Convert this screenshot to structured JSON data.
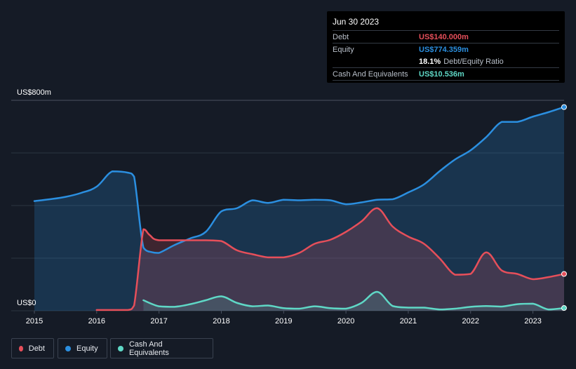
{
  "tooltip": {
    "date": "Jun 30 2023",
    "rows": {
      "debt": {
        "label": "Debt",
        "value": "US$140.000m"
      },
      "equity": {
        "label": "Equity",
        "value": "US$774.359m"
      },
      "ratio": {
        "value": "18.1%",
        "label": "Debt/Equity Ratio"
      },
      "cash": {
        "label": "Cash And Equivalents",
        "value": "US$10.536m"
      }
    }
  },
  "legend": [
    {
      "key": "debt",
      "label": "Debt"
    },
    {
      "key": "equity",
      "label": "Equity"
    },
    {
      "key": "cash",
      "label": "Cash And Equivalents"
    }
  ],
  "colors": {
    "debt": "#e64f5a",
    "equity": "#2b8fe0",
    "cash": "#5fd8c6",
    "grid": "#2c3440",
    "axis_text": "#ffffff"
  },
  "chart_data": {
    "type": "area",
    "title": "",
    "xlabel": "",
    "ylabel": "",
    "ylim": [
      0,
      800
    ],
    "xlim": [
      2015.0,
      2023.5
    ],
    "y_tick_labels": {
      "top": "US$800m",
      "bottom": "US$0"
    },
    "x_ticks": [
      "2015",
      "2016",
      "2017",
      "2018",
      "2019",
      "2020",
      "2021",
      "2022",
      "2023"
    ],
    "series": [
      {
        "name": "Equity",
        "key": "equity",
        "points": [
          [
            2015.0,
            417
          ],
          [
            2015.25,
            424
          ],
          [
            2015.5,
            433
          ],
          [
            2015.75,
            448
          ],
          [
            2016.0,
            472
          ],
          [
            2016.25,
            530
          ],
          [
            2016.5,
            525
          ],
          [
            2016.6,
            510
          ],
          [
            2016.75,
            240
          ],
          [
            2016.9,
            222
          ],
          [
            2017.0,
            220
          ],
          [
            2017.25,
            250
          ],
          [
            2017.5,
            275
          ],
          [
            2017.75,
            300
          ],
          [
            2018.0,
            378
          ],
          [
            2018.25,
            390
          ],
          [
            2018.5,
            420
          ],
          [
            2018.75,
            410
          ],
          [
            2019.0,
            422
          ],
          [
            2019.25,
            420
          ],
          [
            2019.5,
            422
          ],
          [
            2019.75,
            420
          ],
          [
            2020.0,
            405
          ],
          [
            2020.25,
            412
          ],
          [
            2020.5,
            422
          ],
          [
            2020.75,
            424
          ],
          [
            2021.0,
            450
          ],
          [
            2021.25,
            480
          ],
          [
            2021.5,
            530
          ],
          [
            2021.75,
            575
          ],
          [
            2022.0,
            610
          ],
          [
            2022.25,
            660
          ],
          [
            2022.5,
            718
          ],
          [
            2022.75,
            718
          ],
          [
            2023.0,
            738
          ],
          [
            2023.25,
            755
          ],
          [
            2023.5,
            774.359
          ]
        ]
      },
      {
        "name": "Debt",
        "key": "debt",
        "points": [
          [
            2016.0,
            3
          ],
          [
            2016.25,
            3
          ],
          [
            2016.5,
            3
          ],
          [
            2016.6,
            20
          ],
          [
            2016.75,
            310
          ],
          [
            2016.85,
            288
          ],
          [
            2017.0,
            268
          ],
          [
            2017.5,
            268
          ],
          [
            2017.75,
            268
          ],
          [
            2018.0,
            265
          ],
          [
            2018.25,
            230
          ],
          [
            2018.5,
            215
          ],
          [
            2018.75,
            203
          ],
          [
            2019.0,
            203
          ],
          [
            2019.25,
            220
          ],
          [
            2019.5,
            255
          ],
          [
            2019.75,
            270
          ],
          [
            2020.0,
            300
          ],
          [
            2020.25,
            340
          ],
          [
            2020.5,
            390
          ],
          [
            2020.75,
            320
          ],
          [
            2021.0,
            282
          ],
          [
            2021.25,
            255
          ],
          [
            2021.5,
            200
          ],
          [
            2021.75,
            137
          ],
          [
            2022.0,
            140
          ],
          [
            2022.25,
            222
          ],
          [
            2022.5,
            153
          ],
          [
            2022.75,
            140
          ],
          [
            2023.0,
            120
          ],
          [
            2023.25,
            128
          ],
          [
            2023.5,
            140
          ]
        ]
      },
      {
        "name": "Cash And Equivalents",
        "key": "cash",
        "points": [
          [
            2016.75,
            40
          ],
          [
            2017.0,
            17
          ],
          [
            2017.25,
            15
          ],
          [
            2017.5,
            25
          ],
          [
            2017.75,
            40
          ],
          [
            2018.0,
            55
          ],
          [
            2018.25,
            30
          ],
          [
            2018.5,
            17
          ],
          [
            2018.75,
            20
          ],
          [
            2019.0,
            10
          ],
          [
            2019.25,
            8
          ],
          [
            2019.5,
            17
          ],
          [
            2019.75,
            10
          ],
          [
            2020.0,
            8
          ],
          [
            2020.25,
            30
          ],
          [
            2020.5,
            72
          ],
          [
            2020.75,
            18
          ],
          [
            2021.0,
            12
          ],
          [
            2021.25,
            12
          ],
          [
            2021.5,
            5
          ],
          [
            2021.75,
            8
          ],
          [
            2022.0,
            15
          ],
          [
            2022.25,
            18
          ],
          [
            2022.5,
            16
          ],
          [
            2022.75,
            25
          ],
          [
            2023.0,
            27
          ],
          [
            2023.25,
            5
          ],
          [
            2023.5,
            10.536
          ]
        ]
      }
    ]
  }
}
